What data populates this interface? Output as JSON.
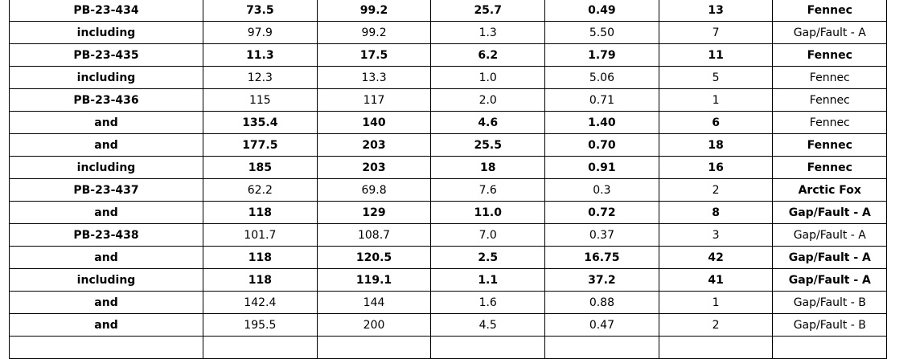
{
  "rows": [
    {
      "cells": [
        "PB-23-434",
        "73.5",
        "99.2",
        "25.7",
        "0.49",
        "13",
        "Fennec"
      ],
      "bold": [
        1,
        1,
        1,
        1,
        1,
        1,
        1
      ]
    },
    {
      "cells": [
        "including",
        "97.9",
        "99.2",
        "1.3",
        "5.50",
        "7",
        "Gap/Fault - A"
      ],
      "bold": [
        1,
        0,
        0,
        0,
        0,
        0,
        0
      ]
    },
    {
      "cells": [
        "PB-23-435",
        "11.3",
        "17.5",
        "6.2",
        "1.79",
        "11",
        "Fennec"
      ],
      "bold": [
        1,
        1,
        1,
        1,
        1,
        1,
        1
      ]
    },
    {
      "cells": [
        "including",
        "12.3",
        "13.3",
        "1.0",
        "5.06",
        "5",
        "Fennec"
      ],
      "bold": [
        1,
        0,
        0,
        0,
        0,
        0,
        0
      ]
    },
    {
      "cells": [
        "PB-23-436",
        "115",
        "117",
        "2.0",
        "0.71",
        "1",
        "Fennec"
      ],
      "bold": [
        1,
        0,
        0,
        0,
        0,
        0,
        0
      ]
    },
    {
      "cells": [
        "and",
        "135.4",
        "140",
        "4.6",
        "1.40",
        "6",
        "Fennec"
      ],
      "bold": [
        1,
        1,
        1,
        1,
        1,
        1,
        0
      ]
    },
    {
      "cells": [
        "and",
        "177.5",
        "203",
        "25.5",
        "0.70",
        "18",
        "Fennec"
      ],
      "bold": [
        1,
        1,
        1,
        1,
        1,
        1,
        1
      ]
    },
    {
      "cells": [
        "including",
        "185",
        "203",
        "18",
        "0.91",
        "16",
        "Fennec"
      ],
      "bold": [
        1,
        1,
        1,
        1,
        1,
        1,
        1
      ]
    },
    {
      "cells": [
        "PB-23-437",
        "62.2",
        "69.8",
        "7.6",
        "0.3",
        "2",
        "Arctic Fox"
      ],
      "bold": [
        1,
        0,
        0,
        0,
        0,
        0,
        1
      ]
    },
    {
      "cells": [
        "and",
        "118",
        "129",
        "11.0",
        "0.72",
        "8",
        "Gap/Fault - A"
      ],
      "bold": [
        1,
        1,
        1,
        1,
        1,
        1,
        1
      ]
    },
    {
      "cells": [
        "PB-23-438",
        "101.7",
        "108.7",
        "7.0",
        "0.37",
        "3",
        "Gap/Fault - A"
      ],
      "bold": [
        1,
        0,
        0,
        0,
        0,
        0,
        0
      ]
    },
    {
      "cells": [
        "and",
        "118",
        "120.5",
        "2.5",
        "16.75",
        "42",
        "Gap/Fault - A"
      ],
      "bold": [
        1,
        1,
        1,
        1,
        1,
        1,
        1
      ]
    },
    {
      "cells": [
        "including",
        "118",
        "119.1",
        "1.1",
        "37.2",
        "41",
        "Gap/Fault - A"
      ],
      "bold": [
        1,
        1,
        1,
        1,
        1,
        1,
        1
      ]
    },
    {
      "cells": [
        "and",
        "142.4",
        "144",
        "1.6",
        "0.88",
        "1",
        "Gap/Fault - B"
      ],
      "bold": [
        1,
        0,
        0,
        0,
        0,
        0,
        0
      ]
    },
    {
      "cells": [
        "and",
        "195.5",
        "200",
        "4.5",
        "0.47",
        "2",
        "Gap/Fault - B"
      ],
      "bold": [
        1,
        0,
        0,
        0,
        0,
        0,
        0
      ]
    },
    {
      "cells": [
        "",
        "",
        "",
        "",
        "",
        "",
        ""
      ],
      "bold": [
        0,
        0,
        0,
        0,
        0,
        0,
        0
      ]
    }
  ]
}
